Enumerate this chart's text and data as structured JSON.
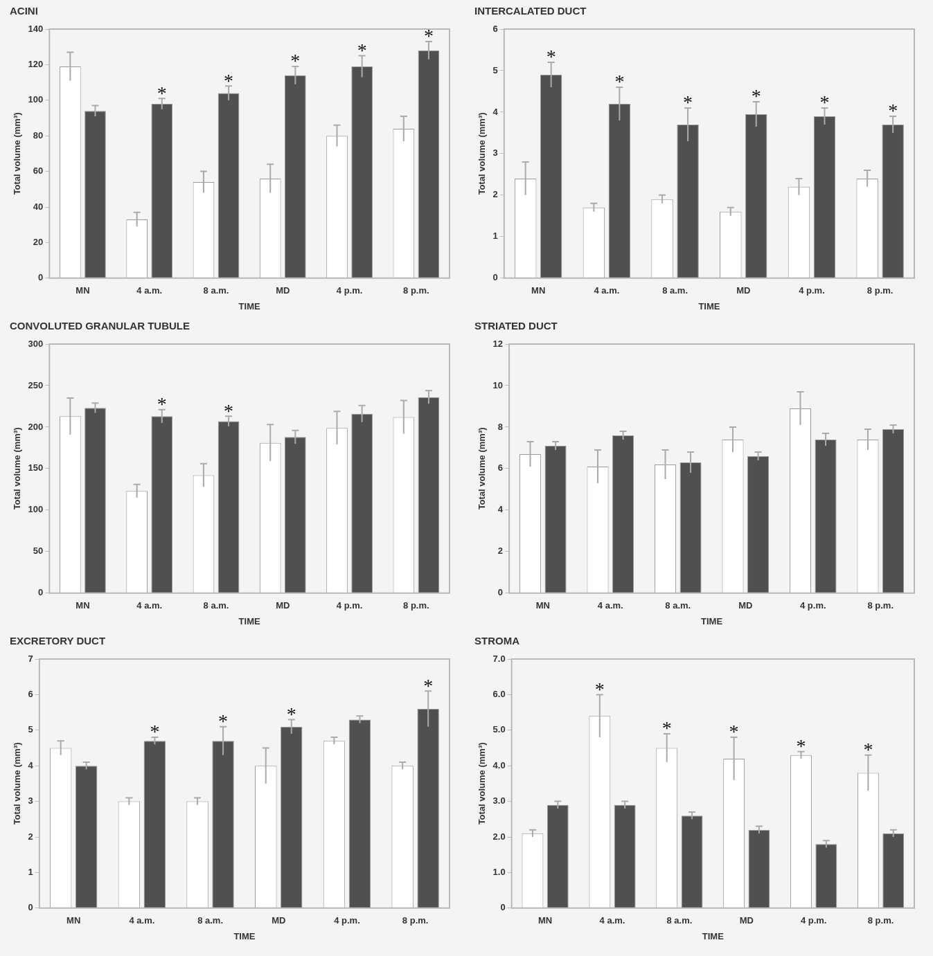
{
  "chart_data": [
    {
      "type": "bar",
      "title": "ACINI",
      "xlabel": "TIME",
      "ylabel": "Total volume (mm³)",
      "categories": [
        "MN",
        "4 a.m.",
        "8 a.m.",
        "MD",
        "4 p.m.",
        "8 p.m."
      ],
      "ylim": [
        0,
        140
      ],
      "yticks": [
        0,
        20,
        40,
        60,
        80,
        100,
        120,
        140
      ],
      "grid": false,
      "legend": false,
      "series": [
        {
          "color": "#ffffff",
          "values": [
            119,
            33,
            54,
            56,
            80,
            84
          ],
          "errors": [
            8,
            4,
            6,
            8,
            6,
            7
          ]
        },
        {
          "color": "#505050",
          "values": [
            94,
            98,
            104,
            114,
            119,
            128
          ],
          "errors": [
            3,
            3,
            4,
            5,
            6,
            5
          ]
        }
      ],
      "annotations": [
        {
          "text": "*",
          "x": "4 a.m.",
          "y": 98
        },
        {
          "text": "*",
          "x": "8 a.m.",
          "y": 104
        },
        {
          "text": "*",
          "x": "MD",
          "y": 114
        },
        {
          "text": "*",
          "x": "4 p.m.",
          "y": 119
        },
        {
          "text": "*",
          "x": "8 p.m.",
          "y": 128
        }
      ]
    },
    {
      "type": "bar",
      "title": "INTERCALATED DUCT",
      "xlabel": "TIME",
      "ylabel": "Total volume (mm³)",
      "categories": [
        "MN",
        "4 a.m.",
        "8 a.m.",
        "MD",
        "4 p.m.",
        "8 p.m."
      ],
      "ylim": [
        0,
        6
      ],
      "yticks": [
        0,
        1,
        2,
        3,
        4,
        5,
        6
      ],
      "grid": false,
      "legend": false,
      "series": [
        {
          "color": "#ffffff",
          "values": [
            2.4,
            1.7,
            1.9,
            1.6,
            2.2,
            2.4
          ],
          "errors": [
            0.4,
            0.1,
            0.1,
            0.1,
            0.2,
            0.2
          ]
        },
        {
          "color": "#505050",
          "values": [
            4.9,
            4.2,
            3.7,
            3.95,
            3.9,
            3.7
          ],
          "errors": [
            0.3,
            0.4,
            0.4,
            0.3,
            0.2,
            0.2
          ]
        }
      ],
      "annotations": [
        {
          "text": "*",
          "x": "MN",
          "y": 4.9
        },
        {
          "text": "*",
          "x": "4 a.m.",
          "y": 4.2
        },
        {
          "text": "*",
          "x": "8 a.m.",
          "y": 3.7
        },
        {
          "text": "*",
          "x": "MD",
          "y": 3.95
        },
        {
          "text": "*",
          "x": "4 p.m.",
          "y": 3.9
        },
        {
          "text": "*",
          "x": "8 p.m.",
          "y": 3.7
        }
      ]
    },
    {
      "type": "bar",
      "title": "CONVOLUTED GRANULAR TUBULE",
      "xlabel": "TIME",
      "ylabel": "Total volume (mm³)",
      "categories": [
        "MN",
        "4 a.m.",
        "8 a.m.",
        "MD",
        "4 p.m.",
        "8 p.m."
      ],
      "ylim": [
        0,
        300
      ],
      "yticks": [
        0,
        50,
        100,
        150,
        200,
        250,
        300
      ],
      "grid": false,
      "legend": false,
      "series": [
        {
          "color": "#ffffff",
          "values": [
            213,
            123,
            142,
            181,
            199,
            212
          ],
          "errors": [
            22,
            8,
            14,
            22,
            20,
            20
          ]
        },
        {
          "color": "#505050",
          "values": [
            223,
            213,
            207,
            188,
            216,
            236
          ],
          "errors": [
            6,
            8,
            6,
            8,
            10,
            8
          ]
        }
      ],
      "annotations": [
        {
          "text": "*",
          "x": "4 a.m.",
          "y": 213
        },
        {
          "text": "*",
          "x": "8 a.m.",
          "y": 207
        }
      ]
    },
    {
      "type": "bar",
      "title": "STRIATED DUCT",
      "xlabel": "TIME",
      "ylabel": "Total volume (mm³)",
      "categories": [
        "MN",
        "4 a.m.",
        "8 a.m.",
        "MD",
        "4 p.m.",
        "8 p.m."
      ],
      "ylim": [
        0,
        12
      ],
      "yticks": [
        0,
        2,
        4,
        6,
        8,
        10,
        12
      ],
      "grid": false,
      "legend": false,
      "series": [
        {
          "color": "#ffffff",
          "values": [
            6.7,
            6.1,
            6.2,
            7.4,
            8.9,
            7.4
          ],
          "errors": [
            0.6,
            0.8,
            0.7,
            0.6,
            0.8,
            0.5
          ]
        },
        {
          "color": "#505050",
          "values": [
            7.1,
            7.6,
            6.3,
            6.6,
            7.4,
            7.9
          ],
          "errors": [
            0.2,
            0.2,
            0.5,
            0.2,
            0.3,
            0.2
          ]
        }
      ]
    },
    {
      "type": "bar",
      "title": "EXCRETORY DUCT",
      "xlabel": "TIME",
      "ylabel": "Total volume (mm³)",
      "categories": [
        "MN",
        "4 a.m.",
        "8 a.m.",
        "MD",
        "4 p.m.",
        "8 p.m."
      ],
      "ylim": [
        0,
        7
      ],
      "yticks": [
        0,
        1,
        2,
        3,
        4,
        5,
        6,
        7
      ],
      "grid": false,
      "legend": false,
      "series": [
        {
          "color": "#ffffff",
          "values": [
            4.5,
            3.0,
            3.0,
            4.0,
            4.7,
            4.0
          ],
          "errors": [
            0.2,
            0.1,
            0.1,
            0.5,
            0.1,
            0.1
          ]
        },
        {
          "color": "#505050",
          "values": [
            4.0,
            4.7,
            4.7,
            5.1,
            5.3,
            5.6
          ],
          "errors": [
            0.1,
            0.1,
            0.4,
            0.2,
            0.1,
            0.5
          ]
        }
      ],
      "annotations": [
        {
          "text": "*",
          "x": "4 a.m.",
          "y": 4.7
        },
        {
          "text": "*",
          "x": "8 a.m.",
          "y": 4.7
        },
        {
          "text": "*",
          "x": "MD",
          "y": 5.1
        },
        {
          "text": "*",
          "x": "8 p.m.",
          "y": 5.6
        }
      ]
    },
    {
      "type": "bar",
      "title": "STROMA",
      "xlabel": "TIME",
      "ylabel": "Total volume (mm³)",
      "categories": [
        "MN",
        "4 a.m.",
        "8 a.m.",
        "MD",
        "4 p.m.",
        "8 p.m."
      ],
      "ylim": [
        0,
        7
      ],
      "yticks": [
        0,
        {
          "value": 1,
          "label": "1.0"
        },
        {
          "value": 2,
          "label": "2.0"
        },
        {
          "value": 3,
          "label": "3.0"
        },
        {
          "value": 4,
          "label": "4.0"
        },
        {
          "value": 5,
          "label": "5.0"
        },
        {
          "value": 6,
          "label": "6.0"
        },
        {
          "value": 7,
          "label": "7.0"
        }
      ],
      "grid": false,
      "legend": false,
      "series": [
        {
          "color": "#ffffff",
          "values": [
            2.1,
            5.4,
            4.5,
            4.2,
            4.3,
            3.8
          ],
          "errors": [
            0.1,
            0.6,
            0.4,
            0.6,
            0.1,
            0.5
          ]
        },
        {
          "color": "#505050",
          "values": [
            2.9,
            2.9,
            2.6,
            2.2,
            1.8,
            2.1
          ],
          "errors": [
            0.1,
            0.1,
            0.1,
            0.1,
            0.1,
            0.1
          ]
        }
      ],
      "annotations": [
        {
          "text": "*",
          "x": "4 a.m.",
          "y": 5.4
        },
        {
          "text": "*",
          "x": "8 a.m.",
          "y": 4.5
        },
        {
          "text": "*",
          "x": "MD",
          "y": 4.2
        },
        {
          "text": "*",
          "x": "4 p.m.",
          "y": 4.3
        },
        {
          "text": "*",
          "x": "8 p.m.",
          "y": 3.8
        }
      ]
    }
  ]
}
